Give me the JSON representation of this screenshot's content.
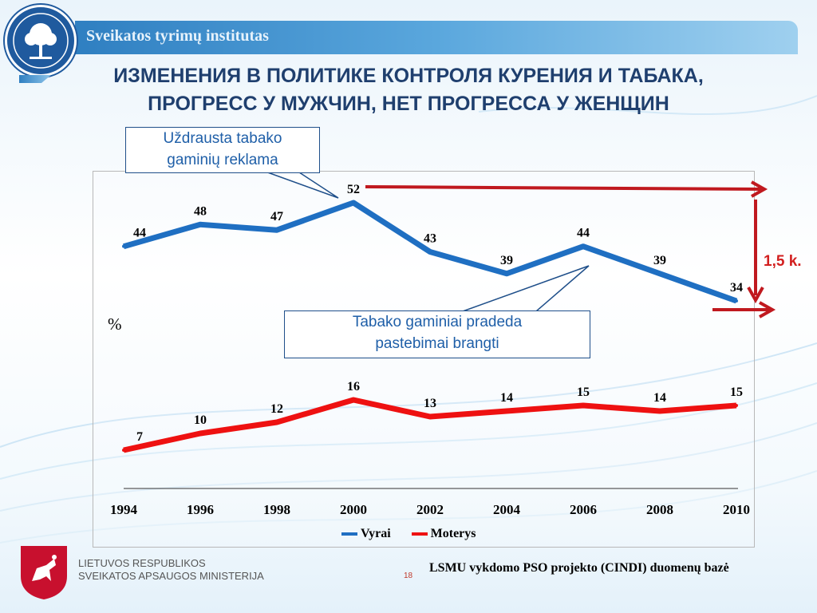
{
  "header": {
    "institute_name": "Sveikatos tyrimų institutas"
  },
  "title": {
    "line1": "ИЗМЕНЕНИЯ В ПОЛИТИКЕ КОНТРОЛЯ КУРЕНИЯ И ТАБАКА,",
    "line2": "ПРОГРЕСС У МУЖЧИН, НЕТ ПРОГРЕССА У ЖЕНЩИН"
  },
  "callouts": {
    "ad_ban_line1": "Uždrausta tabako",
    "ad_ban_line2": "gaminių reklama",
    "price_line1": "Tabako gaminiai pradeda",
    "price_line2": "pastebimai brangti"
  },
  "annotations": {
    "unit": "%",
    "difference": "1,5 k."
  },
  "chart_data": {
    "type": "line",
    "x": [
      "1994",
      "1996",
      "1998",
      "2000",
      "2002",
      "2004",
      "2006",
      "2008",
      "2010"
    ],
    "series": [
      {
        "name": "Vyrai",
        "color": "#1f6fc2",
        "values": [
          44,
          48,
          47,
          52,
          43,
          39,
          44,
          39,
          34
        ]
      },
      {
        "name": "Moterys",
        "color": "#ee1111",
        "values": [
          7,
          10,
          12,
          16,
          13,
          14,
          15,
          14,
          15
        ]
      }
    ],
    "ylabel": "%",
    "grid": false,
    "legend": "bottom"
  },
  "footer": {
    "ministry_line1": "LIETUVOS RESPUBLIKOS",
    "ministry_line2": "SVEIKATOS APSAUGOS MINISTERIJA",
    "source": "LSMU vykdomo PSO  projekto (CINDI) duomenų bazė",
    "page_number": "18"
  },
  "colors": {
    "accent_dark_blue": "#1f3f6e",
    "arrow_red": "#c0191f"
  }
}
